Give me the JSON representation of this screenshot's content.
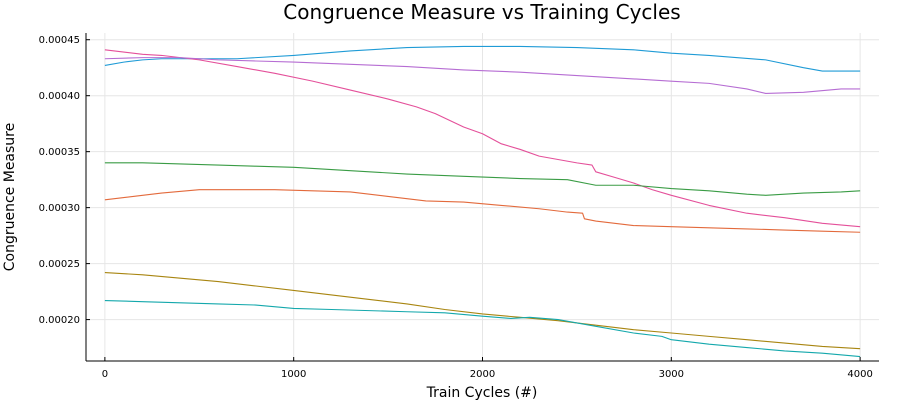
{
  "chart_data": {
    "type": "line",
    "title": "Congruence Measure vs Training Cycles",
    "xlabel": "Train Cycles (#)",
    "ylabel": "Congruence Measure",
    "xlim": [
      -100,
      4100
    ],
    "ylim": [
      0.000163,
      0.000456
    ],
    "xticks": [
      0,
      1000,
      2000,
      3000,
      4000
    ],
    "xtick_labels": [
      "0",
      "1000",
      "2000",
      "3000",
      "4000"
    ],
    "yticks": [
      0.0002,
      0.00025,
      0.0003,
      0.00035,
      0.0004,
      0.00045
    ],
    "ytick_labels": [
      "0.00020",
      "0.00025",
      "0.00030",
      "0.00035",
      "0.00040",
      "0.00045"
    ],
    "grid": true,
    "legend": "none",
    "series": [
      {
        "color": "#1f9bd6",
        "x": [
          0,
          100,
          200,
          300,
          500,
          700,
          1000,
          1300,
          1600,
          1900,
          2200,
          2500,
          2800,
          3000,
          3200,
          3500,
          3700,
          3800,
          4000
        ],
        "y": [
          0.000427,
          0.00043,
          0.000432,
          0.000433,
          0.000433,
          0.000433,
          0.000436,
          0.00044,
          0.000443,
          0.000444,
          0.000444,
          0.000443,
          0.000441,
          0.000438,
          0.000436,
          0.000432,
          0.000425,
          0.000422,
          0.000422
        ]
      },
      {
        "color": "#e4509a",
        "x": [
          0,
          100,
          200,
          300,
          500,
          700,
          900,
          1100,
          1300,
          1500,
          1650,
          1750,
          1900,
          2000,
          2100,
          2200,
          2300,
          2400,
          2500,
          2580,
          2600,
          2700,
          2800,
          2900,
          3000,
          3200,
          3400,
          3600,
          3800,
          4000
        ],
        "y": [
          0.000441,
          0.000439,
          0.000437,
          0.000436,
          0.000432,
          0.000426,
          0.00042,
          0.000413,
          0.000405,
          0.000397,
          0.00039,
          0.000384,
          0.000372,
          0.000366,
          0.000357,
          0.000352,
          0.000346,
          0.000343,
          0.00034,
          0.000338,
          0.000332,
          0.000327,
          0.000322,
          0.000316,
          0.000311,
          0.000302,
          0.000295,
          0.000291,
          0.000286,
          0.000283
        ]
      },
      {
        "color": "#b66dd3",
        "x": [
          0,
          200,
          400,
          600,
          800,
          1000,
          1300,
          1600,
          1900,
          2200,
          2500,
          2800,
          3000,
          3200,
          3400,
          3500,
          3700,
          3900,
          4000
        ],
        "y": [
          0.000433,
          0.000434,
          0.000434,
          0.000432,
          0.000431,
          0.00043,
          0.000428,
          0.000426,
          0.000423,
          0.000421,
          0.000418,
          0.000415,
          0.000413,
          0.000411,
          0.000406,
          0.000402,
          0.000403,
          0.000406,
          0.000406
        ]
      },
      {
        "color": "#3a9c45",
        "x": [
          0,
          200,
          400,
          600,
          800,
          1000,
          1300,
          1600,
          1900,
          2200,
          2450,
          2600,
          2800,
          3000,
          3200,
          3400,
          3500,
          3700,
          3900,
          4000
        ],
        "y": [
          0.00034,
          0.00034,
          0.000339,
          0.000338,
          0.000337,
          0.000336,
          0.000333,
          0.00033,
          0.000328,
          0.000326,
          0.000325,
          0.00032,
          0.00032,
          0.000317,
          0.000315,
          0.000312,
          0.000311,
          0.000313,
          0.000314,
          0.000315
        ]
      },
      {
        "color": "#e36a3c",
        "x": [
          0,
          100,
          200,
          300,
          500,
          700,
          900,
          1100,
          1300,
          1500,
          1700,
          1900,
          2100,
          2300,
          2450,
          2530,
          2540,
          2600,
          2800,
          3000,
          3200,
          3400,
          3600,
          3800,
          4000
        ],
        "y": [
          0.000307,
          0.000309,
          0.000311,
          0.000313,
          0.000316,
          0.000316,
          0.000316,
          0.000315,
          0.000314,
          0.00031,
          0.000306,
          0.000305,
          0.000302,
          0.000299,
          0.000296,
          0.000295,
          0.00029,
          0.000288,
          0.000284,
          0.000283,
          0.000282,
          0.000281,
          0.00028,
          0.000279,
          0.000278
        ]
      },
      {
        "color": "#a88510",
        "x": [
          0,
          200,
          400,
          600,
          800,
          1000,
          1200,
          1400,
          1600,
          1800,
          2000,
          2200,
          2400,
          2600,
          2800,
          3000,
          3200,
          3400,
          3600,
          3800,
          4000
        ],
        "y": [
          0.000242,
          0.00024,
          0.000237,
          0.000234,
          0.00023,
          0.000226,
          0.000222,
          0.000218,
          0.000214,
          0.000209,
          0.000205,
          0.000202,
          0.000199,
          0.000195,
          0.000191,
          0.000188,
          0.000185,
          0.000182,
          0.000179,
          0.000176,
          0.000174
        ]
      },
      {
        "color": "#14a8ac",
        "x": [
          0,
          200,
          400,
          600,
          800,
          1000,
          1200,
          1400,
          1600,
          1800,
          2000,
          2150,
          2250,
          2400,
          2600,
          2800,
          2950,
          3000,
          3200,
          3400,
          3600,
          3800,
          4000
        ],
        "y": [
          0.000217,
          0.000216,
          0.000215,
          0.000214,
          0.000213,
          0.00021,
          0.000209,
          0.000208,
          0.000207,
          0.000206,
          0.000203,
          0.000201,
          0.000202,
          0.0002,
          0.000194,
          0.000188,
          0.000185,
          0.000182,
          0.000178,
          0.000175,
          0.000172,
          0.00017,
          0.000167
        ]
      }
    ]
  }
}
